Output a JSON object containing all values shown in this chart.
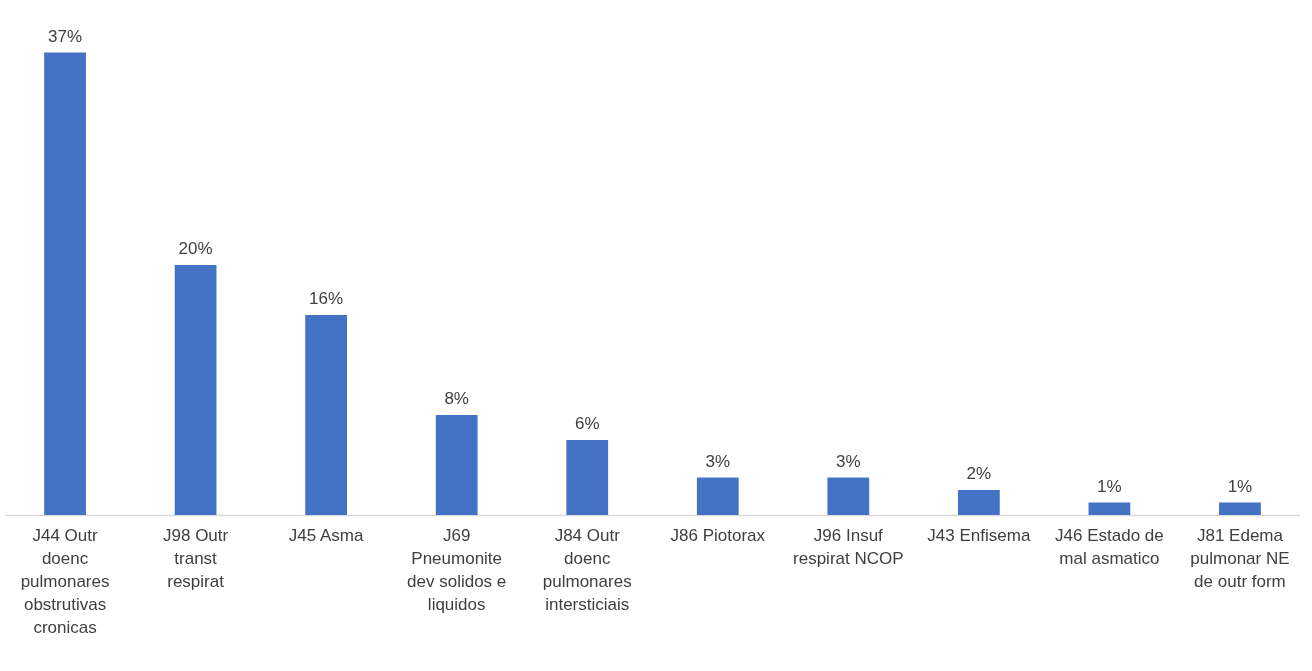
{
  "chart_data": {
    "type": "bar",
    "categories": [
      "J44 Outr doenc pulmonares obstrutivas cronicas",
      "J98 Outr transt respirat",
      "J45 Asma",
      "J69 Pneumonite dev solidos e liquidos",
      "J84 Outr doenc pulmonares intersticiais",
      "J86 Piotorax",
      "J96 Insuf respirat NCOP",
      "J43 Enfisema",
      "J46 Estado de mal asmatico",
      "J81 Edema pulmonar NE de outr form"
    ],
    "values": [
      37,
      20,
      16,
      8,
      6,
      3,
      3,
      2,
      1,
      1
    ],
    "value_labels": [
      "37%",
      "20%",
      "16%",
      "8%",
      "6%",
      "3%",
      "3%",
      "2%",
      "1%",
      "1%"
    ],
    "color": "#4472c4",
    "tick_labels": "x"
  }
}
